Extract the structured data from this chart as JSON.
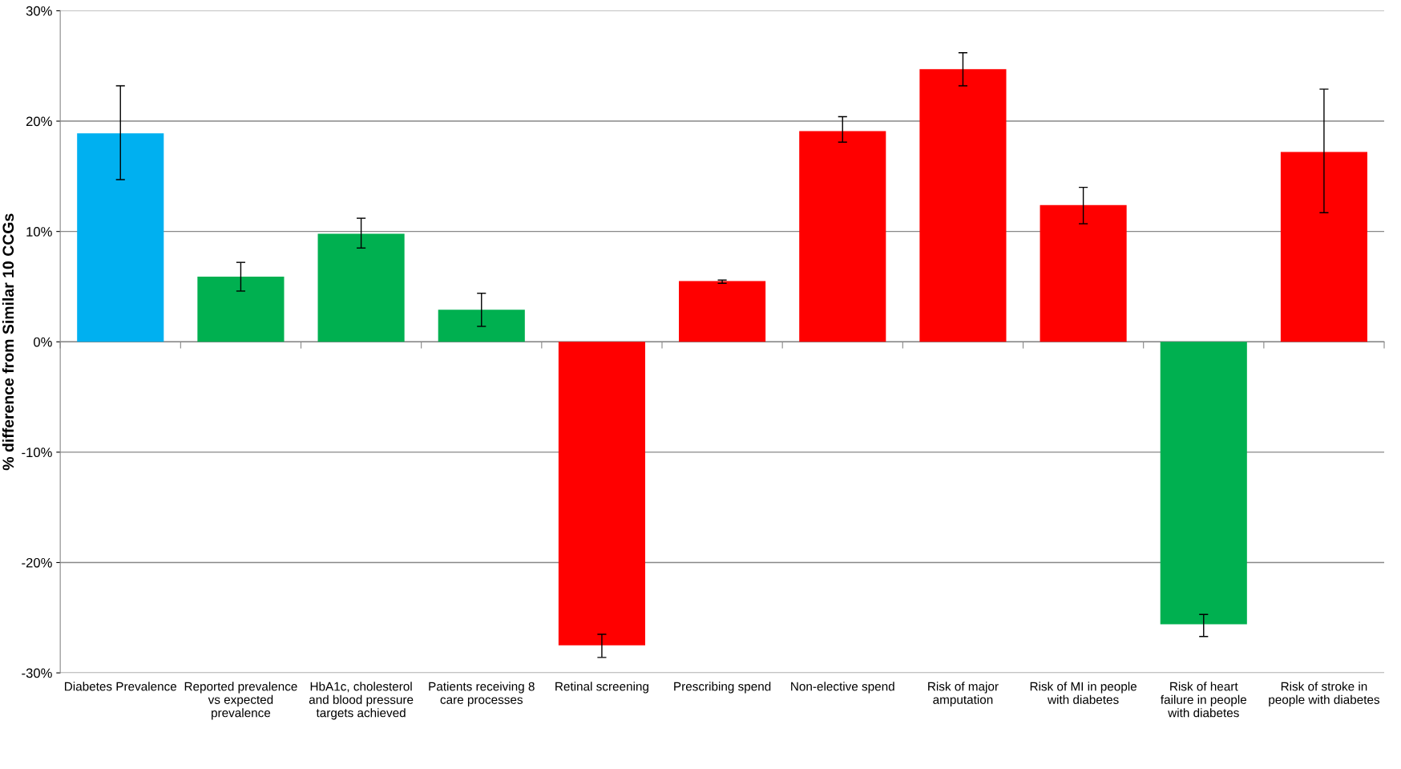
{
  "chart_data": {
    "type": "bar",
    "ylabel": "% difference from Similar 10 CCGs",
    "categories": [
      "Diabetes Prevalence",
      "Reported prevalence vs expected prevalence",
      "HbA1c, cholesterol and blood pressure targets achieved",
      "Patients receiving 8 care processes",
      "Retinal screening",
      "Prescribing spend",
      "Non-elective spend",
      "Risk of major amputation",
      "Risk of MI in people with diabetes",
      "Risk of heart failure in people with diabetes",
      "Risk of stroke in people with diabetes"
    ],
    "values": [
      18.9,
      5.9,
      9.8,
      2.9,
      -27.5,
      5.5,
      19.1,
      24.7,
      12.4,
      -25.6,
      17.2
    ],
    "colors": [
      "#00b0f0",
      "#00b050",
      "#00b050",
      "#00b050",
      "#ff0000",
      "#ff0000",
      "#ff0000",
      "#ff0000",
      "#ff0000",
      "#00b050",
      "#ff0000"
    ],
    "errors": [
      [
        14.7,
        23.2
      ],
      [
        4.6,
        7.2
      ],
      [
        8.5,
        11.2
      ],
      [
        1.4,
        4.4
      ],
      [
        -28.6,
        -26.5
      ],
      [
        5.3,
        5.6
      ],
      [
        18.1,
        20.4
      ],
      [
        23.2,
        26.2
      ],
      [
        10.7,
        14.0
      ],
      [
        -26.7,
        -24.7
      ],
      [
        11.7,
        22.9
      ]
    ],
    "ylim": [
      -30,
      30
    ],
    "yticks": [
      {
        "value": -30,
        "label": "-30%"
      },
      {
        "value": -20,
        "label": "-20%"
      },
      {
        "value": -10,
        "label": "-10%"
      },
      {
        "value": 0,
        "label": "0%"
      },
      {
        "value": 10,
        "label": "10%"
      },
      {
        "value": 20,
        "label": "20%"
      },
      {
        "value": 30,
        "label": "30%"
      }
    ],
    "grid": "y"
  }
}
